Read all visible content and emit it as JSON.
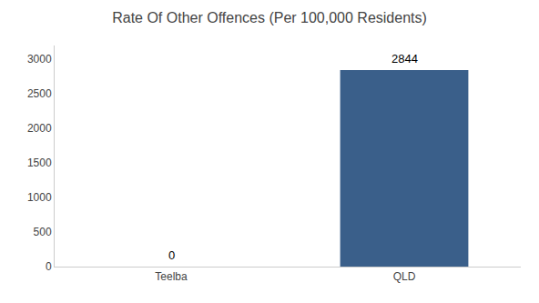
{
  "chart_data": {
    "type": "bar",
    "title": "Rate Of Other Offences (Per 100,000 Residents)",
    "categories": [
      "Teelba",
      "QLD"
    ],
    "values": [
      0,
      2844
    ],
    "colors": [
      "#3a5f8a",
      "#3a5f8a"
    ],
    "ylim": [
      0,
      3200
    ],
    "yticks": [
      0,
      500,
      1000,
      1500,
      2000,
      2500,
      3000
    ],
    "grid": false,
    "data_labels": true
  }
}
